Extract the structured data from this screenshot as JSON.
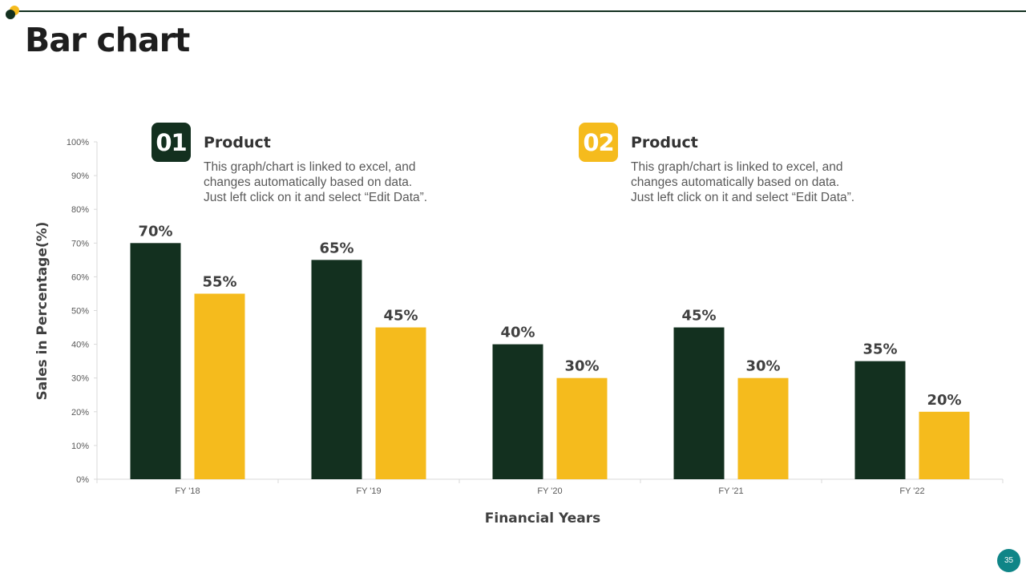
{
  "slide": {
    "title": "Bar chart",
    "page_number": "35"
  },
  "colors": {
    "accent_dark": "#13301f",
    "accent_yellow": "#f5bb1d",
    "page_badge": "#0f8587"
  },
  "legend": [
    {
      "number": "01",
      "title": "Product",
      "description": "This graph/chart is linked to excel, and\nchanges automatically based on data.\nJust left click on it and select “Edit Data”."
    },
    {
      "number": "02",
      "title": "Product",
      "description": "This graph/chart is linked to excel, and\nchanges automatically based on data.\nJust left click on it and select “Edit Data”."
    }
  ],
  "chart_data": {
    "type": "bar",
    "categories": [
      "FY '18",
      "FY '19",
      "FY '20",
      "FY '21",
      "FY '22"
    ],
    "series": [
      {
        "values": [
          70,
          65,
          40,
          45,
          35
        ],
        "color": "#13301f"
      },
      {
        "values": [
          55,
          45,
          30,
          30,
          20
        ],
        "color": "#f5bb1d"
      }
    ],
    "value_labels": [
      [
        "70%",
        "65%",
        "40%",
        "45%",
        "35%"
      ],
      [
        "55%",
        "45%",
        "30%",
        "30%",
        "20%"
      ]
    ],
    "y_ticks": [
      "0%",
      "10%",
      "20%",
      "30%",
      "40%",
      "50%",
      "60%",
      "70%",
      "80%",
      "90%",
      "100%"
    ],
    "ylim": [
      0,
      100
    ],
    "xlabel": "Financial Years",
    "ylabel": "Sales in Percentage(%)",
    "grid": false,
    "legend_placement": "top"
  }
}
